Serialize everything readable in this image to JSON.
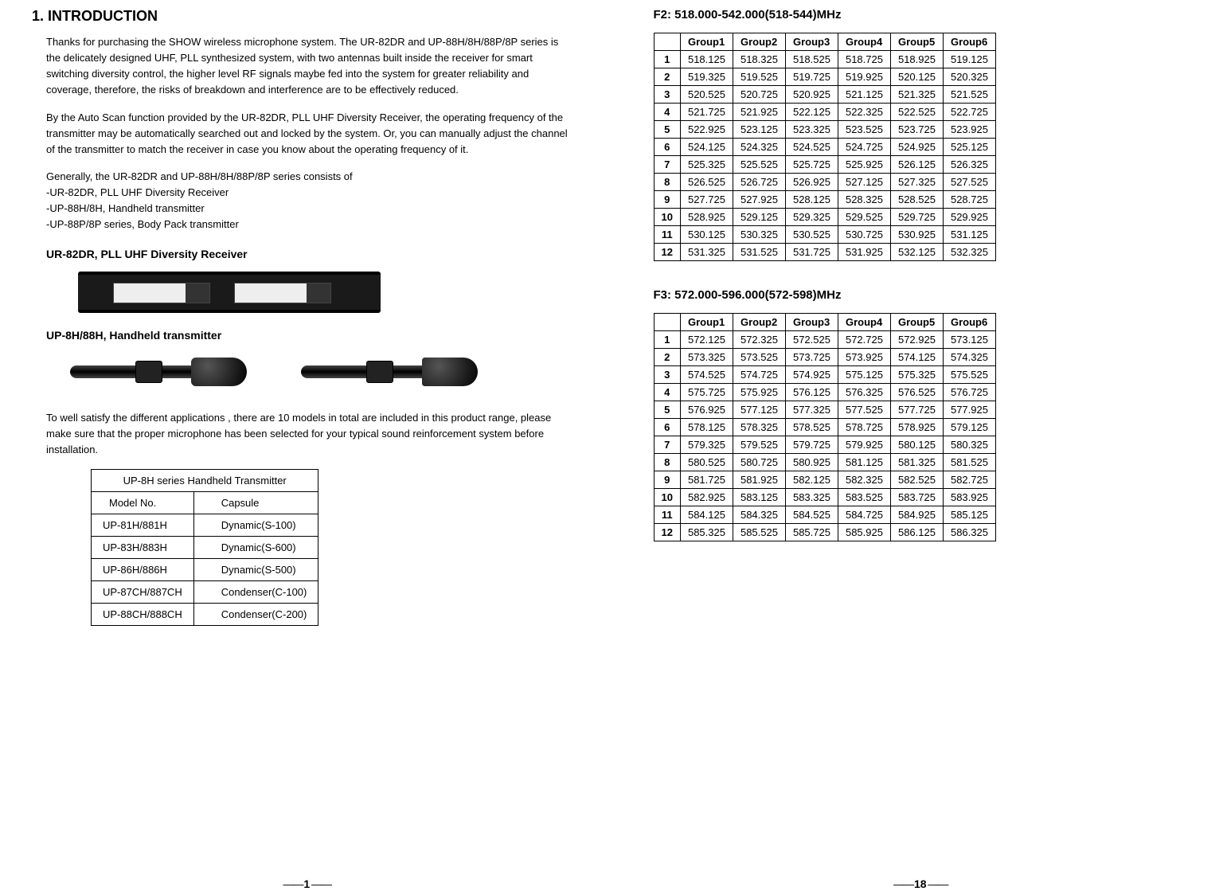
{
  "left": {
    "heading": "1. INTRODUCTION",
    "para1": "Thanks for purchasing the SHOW wireless microphone system. The UR-82DR and UP-88H/8H/88P/8P series   is the delicately designed UHF, PLL synthesized system, with two antennas built inside the receiver for smart switching diversity control, the higher level RF signals maybe fed into the system for greater reliability and coverage, therefore, the risks of breakdown and interference are to be effectively reduced.",
    "para2": "By the Auto Scan function provided by the UR-82DR, PLL UHF Diversity Receiver, the operating frequency of the transmitter may be automatically searched out and locked by the system. Or, you can manually adjust the channel of the transmitter to match the receiver in case you know about the operating frequency of it.",
    "genLine": "Generally, the UR-82DR and UP-88H/8H/88P/8P series consists of",
    "gen1": "-UR-82DR, PLL UHF Diversity Receiver",
    "gen2": "-UP-88H/8H, Handheld transmitter",
    "gen3": "-UP-88P/8P series, Body Pack transmitter",
    "sub1": "UR-82DR, PLL UHF Diversity Receiver",
    "sub2": "UP-8H/88H, Handheld transmitter",
    "para3": "To well satisfy the different applications , there are 10 models in total are included in this product range, please make sure that the proper microphone has been selected for your typical sound reinforcement system before installation.",
    "modelTable": {
      "title": "UP-8H series Handheld Transmitter",
      "h1": "Model No.",
      "h2": "Capsule",
      "rows": [
        [
          "UP-81H/881H",
          "Dynamic(S-100)"
        ],
        [
          "UP-83H/883H",
          "Dynamic(S-600)"
        ],
        [
          "UP-86H/886H",
          "Dynamic(S-500)"
        ],
        [
          "UP-87CH/887CH",
          "Condenser(C-100)"
        ],
        [
          "UP-88CH/888CH",
          "Condenser(C-200)"
        ]
      ]
    },
    "pageNum": "1"
  },
  "right": {
    "f2title": "F2: 518.000-542.000(518-544)MHz",
    "f3title": "F3: 572.000-596.000(572-598)MHz",
    "headers": [
      "Group1",
      "Group2",
      "Group3",
      "Group4",
      "Group5",
      "Group6"
    ],
    "f2": [
      [
        "518.125",
        "518.325",
        "518.525",
        "518.725",
        "518.925",
        "519.125"
      ],
      [
        "519.325",
        "519.525",
        "519.725",
        "519.925",
        "520.125",
        "520.325"
      ],
      [
        "520.525",
        "520.725",
        "520.925",
        "521.125",
        "521.325",
        "521.525"
      ],
      [
        "521.725",
        "521.925",
        "522.125",
        "522.325",
        "522.525",
        "522.725"
      ],
      [
        "522.925",
        "523.125",
        "523.325",
        "523.525",
        "523.725",
        "523.925"
      ],
      [
        "524.125",
        "524.325",
        "524.525",
        "524.725",
        "524.925",
        "525.125"
      ],
      [
        "525.325",
        "525.525",
        "525.725",
        "525.925",
        "526.125",
        "526.325"
      ],
      [
        "526.525",
        "526.725",
        "526.925",
        "527.125",
        "527.325",
        "527.525"
      ],
      [
        "527.725",
        "527.925",
        "528.125",
        "528.325",
        "528.525",
        "528.725"
      ],
      [
        "528.925",
        "529.125",
        "529.325",
        "529.525",
        "529.725",
        "529.925"
      ],
      [
        "530.125",
        "530.325",
        "530.525",
        "530.725",
        "530.925",
        "531.125"
      ],
      [
        "531.325",
        "531.525",
        "531.725",
        "531.925",
        "532.125",
        "532.325"
      ]
    ],
    "f3": [
      [
        "572.125",
        "572.325",
        "572.525",
        "572.725",
        "572.925",
        "573.125"
      ],
      [
        "573.325",
        "573.525",
        "573.725",
        "573.925",
        "574.125",
        "574.325"
      ],
      [
        "574.525",
        "574.725",
        "574.925",
        "575.125",
        "575.325",
        "575.525"
      ],
      [
        "575.725",
        "575.925",
        "576.125",
        "576.325",
        "576.525",
        "576.725"
      ],
      [
        "576.925",
        "577.125",
        "577.325",
        "577.525",
        "577.725",
        "577.925"
      ],
      [
        "578.125",
        "578.325",
        "578.525",
        "578.725",
        "578.925",
        "579.125"
      ],
      [
        "579.325",
        "579.525",
        "579.725",
        "579.925",
        "580.125",
        "580.325"
      ],
      [
        "580.525",
        "580.725",
        "580.925",
        "581.125",
        "581.325",
        "581.525"
      ],
      [
        "581.725",
        "581.925",
        "582.125",
        "582.325",
        "582.525",
        "582.725"
      ],
      [
        "582.925",
        "583.125",
        "583.325",
        "583.525",
        "583.725",
        "583.925"
      ],
      [
        "584.125",
        "584.325",
        "584.525",
        "584.725",
        "584.925",
        "585.125"
      ],
      [
        "585.325",
        "585.525",
        "585.725",
        "585.925",
        "586.125",
        "586.325"
      ]
    ],
    "pageNum": "18"
  }
}
